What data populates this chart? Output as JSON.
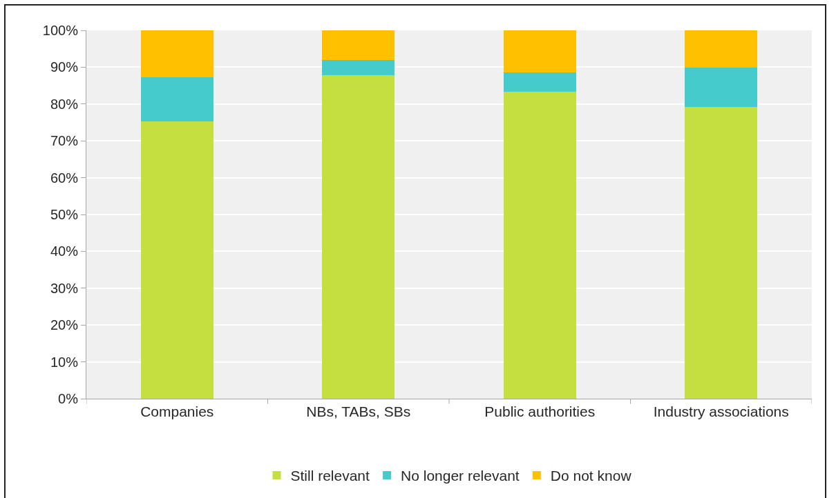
{
  "chart_data": {
    "type": "bar",
    "stacked": true,
    "categories": [
      "Companies",
      "NBs, TABs, SBs",
      "Public authorities",
      "Industry associations"
    ],
    "series": [
      {
        "name": "Still relevant",
        "color": "#c5df41",
        "values": [
          75.2,
          87.9,
          83.4,
          79.3
        ]
      },
      {
        "name": "No longer relevant",
        "color": "#45cbcb",
        "values": [
          12.1,
          4.1,
          5.1,
          10.6
        ]
      },
      {
        "name": "Do not know",
        "color": "#ffc000",
        "values": [
          12.7,
          8.0,
          11.5,
          10.1
        ]
      }
    ],
    "ylim": [
      0,
      100
    ],
    "yticks": [
      {
        "value": 0,
        "label": "0%"
      },
      {
        "value": 10,
        "label": "10%"
      },
      {
        "value": 20,
        "label": "20%"
      },
      {
        "value": 30,
        "label": "30%"
      },
      {
        "value": 40,
        "label": "40%"
      },
      {
        "value": 50,
        "label": "50%"
      },
      {
        "value": 60,
        "label": "60%"
      },
      {
        "value": 70,
        "label": "70%"
      },
      {
        "value": 80,
        "label": "80%"
      },
      {
        "value": 90,
        "label": "90%"
      },
      {
        "value": 100,
        "label": "100%"
      }
    ],
    "grid": "y",
    "legend": "bottom"
  }
}
